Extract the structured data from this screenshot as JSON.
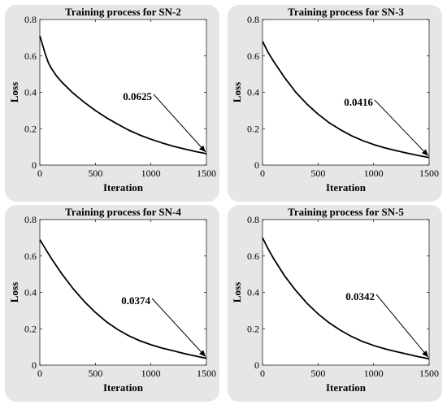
{
  "chart_data": [
    {
      "type": "line",
      "title": "Training process for SN-2",
      "xlabel": "Iteration",
      "ylabel": "Loss",
      "xlim": [
        0,
        1500
      ],
      "ylim": [
        0,
        0.8
      ],
      "xticks": [
        "0",
        "500",
        "1000",
        "1500"
      ],
      "yticks": [
        "0",
        "0.2",
        "0.4",
        "0.6",
        "0.8"
      ],
      "grid": false,
      "series": [
        {
          "x": [
            0,
            25,
            50,
            75,
            100,
            150,
            200,
            300,
            400,
            500,
            600,
            700,
            800,
            900,
            1000,
            1100,
            1200,
            1300,
            1400,
            1500
          ],
          "values": [
            0.71,
            0.66,
            0.61,
            0.565,
            0.535,
            0.49,
            0.455,
            0.395,
            0.345,
            0.3,
            0.26,
            0.225,
            0.192,
            0.165,
            0.142,
            0.122,
            0.104,
            0.089,
            0.075,
            0.0625
          ]
        }
      ],
      "annotation": {
        "text": "0.0625",
        "x": 1500,
        "y": 0.0625
      }
    },
    {
      "type": "line",
      "title": "Training process for SN-3",
      "xlabel": "Iteration",
      "ylabel": "Loss",
      "xlim": [
        0,
        1500
      ],
      "ylim": [
        0,
        0.8
      ],
      "xticks": [
        "0",
        "500",
        "1000",
        "1500"
      ],
      "yticks": [
        "0",
        "0.2",
        "0.4",
        "0.6",
        "0.8"
      ],
      "grid": false,
      "series": [
        {
          "x": [
            0,
            50,
            100,
            200,
            300,
            400,
            500,
            600,
            700,
            800,
            900,
            1000,
            1100,
            1200,
            1300,
            1400,
            1500
          ],
          "values": [
            0.68,
            0.62,
            0.57,
            0.48,
            0.4,
            0.335,
            0.28,
            0.233,
            0.195,
            0.162,
            0.135,
            0.113,
            0.095,
            0.08,
            0.066,
            0.053,
            0.0416
          ]
        }
      ],
      "annotation": {
        "text": "0.0416",
        "x": 1500,
        "y": 0.0416
      }
    },
    {
      "type": "line",
      "title": "Training process for SN-4",
      "xlabel": "Iteration",
      "ylabel": "Loss",
      "xlim": [
        0,
        1500
      ],
      "ylim": [
        0,
        0.8
      ],
      "xticks": [
        "0",
        "500",
        "1000",
        "1500"
      ],
      "yticks": [
        "0",
        "0.2",
        "0.4",
        "0.6",
        "0.8"
      ],
      "grid": false,
      "series": [
        {
          "x": [
            0,
            50,
            100,
            200,
            300,
            400,
            500,
            600,
            700,
            800,
            900,
            1000,
            1100,
            1200,
            1300,
            1400,
            1500
          ],
          "values": [
            0.69,
            0.64,
            0.59,
            0.5,
            0.42,
            0.35,
            0.29,
            0.238,
            0.196,
            0.162,
            0.134,
            0.112,
            0.094,
            0.079,
            0.064,
            0.05,
            0.0374
          ]
        }
      ],
      "annotation": {
        "text": "0.0374",
        "x": 1500,
        "y": 0.0374
      }
    },
    {
      "type": "line",
      "title": "Training process for SN-5",
      "xlabel": "Iteration",
      "ylabel": "Loss",
      "xlim": [
        0,
        1500
      ],
      "ylim": [
        0,
        0.8
      ],
      "xticks": [
        "0",
        "500",
        "1000",
        "1500"
      ],
      "yticks": [
        "0",
        "0.2",
        "0.4",
        "0.6",
        "0.8"
      ],
      "grid": false,
      "series": [
        {
          "x": [
            0,
            50,
            100,
            200,
            300,
            400,
            500,
            600,
            700,
            800,
            900,
            1000,
            1100,
            1200,
            1300,
            1400,
            1500
          ],
          "values": [
            0.7,
            0.64,
            0.585,
            0.49,
            0.41,
            0.34,
            0.282,
            0.233,
            0.192,
            0.158,
            0.13,
            0.108,
            0.09,
            0.075,
            0.061,
            0.047,
            0.0342
          ]
        }
      ],
      "annotation": {
        "text": "0.0342",
        "x": 1500,
        "y": 0.0342
      }
    }
  ]
}
